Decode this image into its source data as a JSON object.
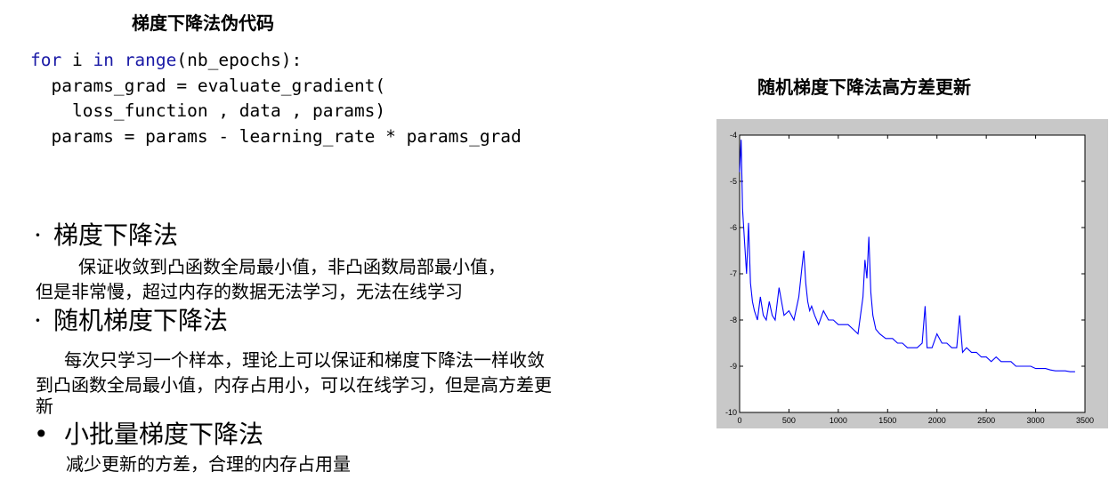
{
  "left_title": "梯度下降法伪代码",
  "code": {
    "line1_kw1": "for",
    "line1_var": " i ",
    "line1_kw2": "in",
    "line1_kw3": " range",
    "line1_rest": "(nb_epochs):",
    "line2": "  params_grad = evaluate_gradient(",
    "line3": "    loss_function , data , params)",
    "line4": "  params = params - learning_rate * params_grad"
  },
  "sections": [
    {
      "bullet": "·",
      "heading": "梯度下降法",
      "lines": [
        "保证收敛到凸函数全局最小值，非凸函数局部最小值，",
        "但是非常慢，超过内存的数据无法学习，无法在线学习"
      ]
    },
    {
      "bullet": "·",
      "heading": "随机梯度下降法",
      "lines": [
        "每次只学习一个样本，理论上可以保证和梯度下降法一样收敛",
        "到凸函数全局最小值，内存占用小，可以在线学习，但是高方差更",
        "新"
      ]
    },
    {
      "bullet": "•",
      "heading": "小批量梯度下降法",
      "lines": [
        "减少更新的方差，合理的内存占用量"
      ]
    }
  ],
  "right_title": "随机梯度下降法高方差更新",
  "chart_data": {
    "type": "line",
    "title": "",
    "xlabel": "",
    "ylabel": "",
    "xlim": [
      0,
      3500
    ],
    "ylim": [
      -10,
      -4
    ],
    "xticks": [
      "0",
      "500",
      "1000",
      "1500",
      "2000",
      "2500",
      "3000",
      "3500"
    ],
    "yticks": [
      "-4",
      "-5",
      "-6",
      "-7",
      "-8",
      "-9",
      "-10"
    ],
    "grid": false,
    "series_color": "#0000ff",
    "x": [
      0,
      15,
      30,
      50,
      70,
      90,
      110,
      130,
      150,
      180,
      210,
      240,
      270,
      300,
      330,
      360,
      400,
      450,
      500,
      550,
      600,
      630,
      650,
      670,
      690,
      710,
      730,
      760,
      800,
      850,
      900,
      950,
      1000,
      1050,
      1100,
      1150,
      1200,
      1250,
      1270,
      1290,
      1310,
      1330,
      1350,
      1380,
      1420,
      1480,
      1550,
      1600,
      1650,
      1700,
      1750,
      1800,
      1850,
      1880,
      1900,
      1950,
      2000,
      2050,
      2100,
      2150,
      2200,
      2230,
      2260,
      2300,
      2350,
      2400,
      2450,
      2500,
      2550,
      2600,
      2650,
      2700,
      2750,
      2800,
      2850,
      2900,
      2950,
      3000,
      3050,
      3100,
      3150,
      3200,
      3250,
      3300,
      3350,
      3400
    ],
    "y": [
      -4.8,
      -4.1,
      -5.6,
      -6.3,
      -7.0,
      -5.9,
      -7.2,
      -7.6,
      -7.8,
      -8.0,
      -7.5,
      -7.9,
      -8.0,
      -7.6,
      -7.9,
      -8.0,
      -7.3,
      -7.9,
      -7.8,
      -8.0,
      -7.5,
      -6.9,
      -6.5,
      -7.2,
      -7.6,
      -7.8,
      -7.7,
      -7.9,
      -8.1,
      -7.8,
      -8.0,
      -8.0,
      -8.1,
      -8.1,
      -8.1,
      -8.2,
      -8.3,
      -7.5,
      -6.7,
      -7.1,
      -6.2,
      -7.4,
      -7.9,
      -8.2,
      -8.3,
      -8.4,
      -8.4,
      -8.5,
      -8.5,
      -8.6,
      -8.6,
      -8.6,
      -8.5,
      -7.7,
      -8.6,
      -8.6,
      -8.3,
      -8.5,
      -8.5,
      -8.6,
      -8.6,
      -7.9,
      -8.7,
      -8.6,
      -8.7,
      -8.7,
      -8.8,
      -8.8,
      -8.9,
      -8.8,
      -8.9,
      -8.9,
      -8.9,
      -9.0,
      -9.0,
      -9.0,
      -9.0,
      -9.05,
      -9.05,
      -9.05,
      -9.08,
      -9.1,
      -9.1,
      -9.1,
      -9.12,
      -9.12
    ]
  }
}
